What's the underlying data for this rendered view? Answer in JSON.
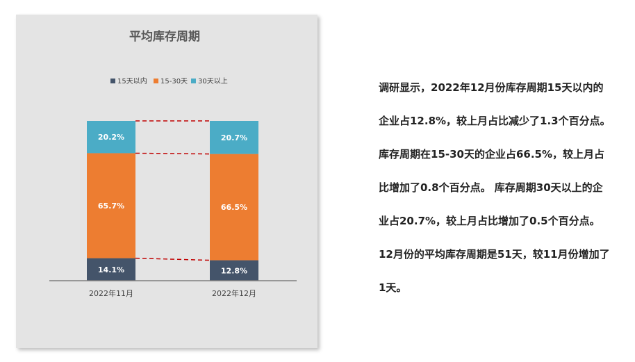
{
  "chart_data": {
    "type": "stacked-bar",
    "title": "平均库存周期",
    "categories": [
      "2022年11月",
      "2022年12月"
    ],
    "series": [
      {
        "name": "15天以内",
        "values": [
          14.1,
          12.8
        ],
        "labels": [
          "14.1%",
          "12.8%"
        ],
        "color": "#44546a"
      },
      {
        "name": "15-30天",
        "values": [
          65.7,
          66.5
        ],
        "labels": [
          "65.7%",
          "66.5%"
        ],
        "color": "#ed7d31"
      },
      {
        "name": "30天以上",
        "values": [
          20.2,
          20.7
        ],
        "labels": [
          "20.2%",
          "20.7%"
        ],
        "color": "#4bacc6"
      }
    ],
    "connector_color": "#c00000",
    "legend": "top",
    "grid": false
  },
  "paragraph_lines": [
    "调研显示，2022年12月份库存周期15天以内的",
    "企业占12.8%，较上月占比减少了1.3个百分点。",
    "库存周期在15-30天的企业占66.5%，较上月占",
    "比增加了0.8个百分点。 库存周期30天以上的企",
    "业占20.7%，较上月占比增加了0.5个百分点。",
    "12月份的平均库存周期是51天，较11月份增加了",
    "1天。"
  ]
}
